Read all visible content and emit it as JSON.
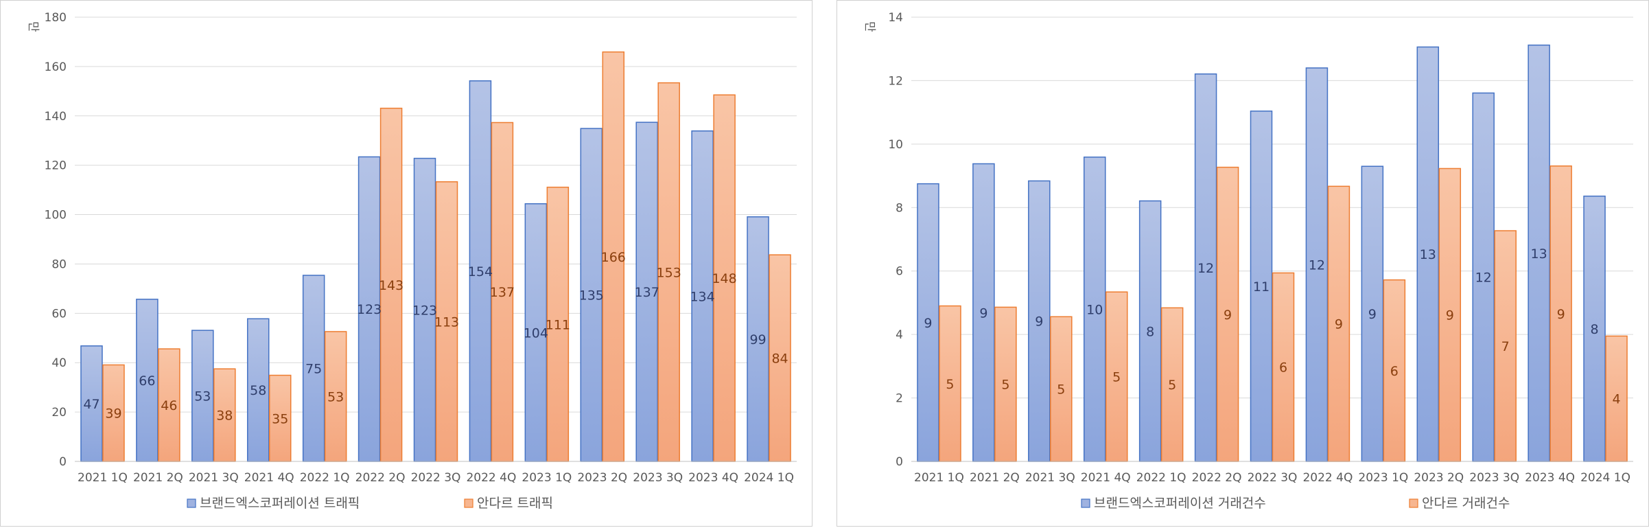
{
  "colors": {
    "series1": "#4472C4",
    "series2": "#ED7D31",
    "grid": "#d9d9d9",
    "axis_text": "#595959"
  },
  "chart_data": [
    {
      "type": "bar",
      "unit_label": "만",
      "categories": [
        "2021 1Q",
        "2021 2Q",
        "2021 3Q",
        "2021 4Q",
        "2022 1Q",
        "2022 2Q",
        "2022 3Q",
        "2022 4Q",
        "2023 1Q",
        "2023 2Q",
        "2023 3Q",
        "2023 4Q",
        "2024 1Q"
      ],
      "ylim": [
        0,
        180
      ],
      "yticks": [
        0,
        20,
        40,
        60,
        80,
        100,
        120,
        140,
        160,
        180
      ],
      "grid": true,
      "legend_position": "bottom",
      "series": [
        {
          "name": "브랜드엑스코퍼레이션 트래픽",
          "values": [
            46.8,
            65.7,
            53.1,
            57.8,
            75.4,
            123.4,
            122.8,
            154.2,
            104.4,
            134.9,
            137.4,
            133.9,
            99.1
          ],
          "labels": [
            "47",
            "66",
            "53",
            "58",
            "75",
            "123",
            "123",
            "154",
            "104",
            "135",
            "137",
            "134",
            "99"
          ]
        },
        {
          "name": "안다르 트래픽",
          "values": [
            39.1,
            45.6,
            37.5,
            34.9,
            52.6,
            143.1,
            113.3,
            137.3,
            111.1,
            165.9,
            153.4,
            148.5,
            83.7
          ],
          "labels": [
            "39",
            "46",
            "38",
            "35",
            "53",
            "143",
            "113",
            "137",
            "111",
            "166",
            "153",
            "148",
            "84"
          ]
        }
      ]
    },
    {
      "type": "bar",
      "unit_label": "만",
      "categories": [
        "2021 1Q",
        "2021 2Q",
        "2021 3Q",
        "2021 4Q",
        "2022 1Q",
        "2022 2Q",
        "2022 3Q",
        "2022 4Q",
        "2023 1Q",
        "2023 2Q",
        "2023 3Q",
        "2023 4Q",
        "2024 1Q"
      ],
      "ylim": [
        0,
        14
      ],
      "yticks": [
        0,
        2,
        4,
        6,
        8,
        10,
        12,
        14
      ],
      "grid": true,
      "legend_position": "bottom",
      "series": [
        {
          "name": "브랜드엑스코퍼레이션 거래건수",
          "values": [
            8.75,
            9.38,
            8.84,
            9.59,
            8.21,
            12.21,
            11.04,
            12.4,
            9.3,
            13.06,
            11.61,
            13.12,
            8.36
          ],
          "labels": [
            "9",
            "9",
            "9",
            "10",
            "8",
            "12",
            "11",
            "12",
            "9",
            "13",
            "12",
            "13",
            "8"
          ]
        },
        {
          "name": "안다르 거래건수",
          "values": [
            4.9,
            4.86,
            4.56,
            5.34,
            4.84,
            9.27,
            5.94,
            8.67,
            5.72,
            9.23,
            7.27,
            9.31,
            3.95
          ],
          "labels": [
            "5",
            "5",
            "5",
            "5",
            "5",
            "9",
            "6",
            "9",
            "6",
            "9",
            "7",
            "9",
            "4"
          ]
        }
      ]
    }
  ]
}
